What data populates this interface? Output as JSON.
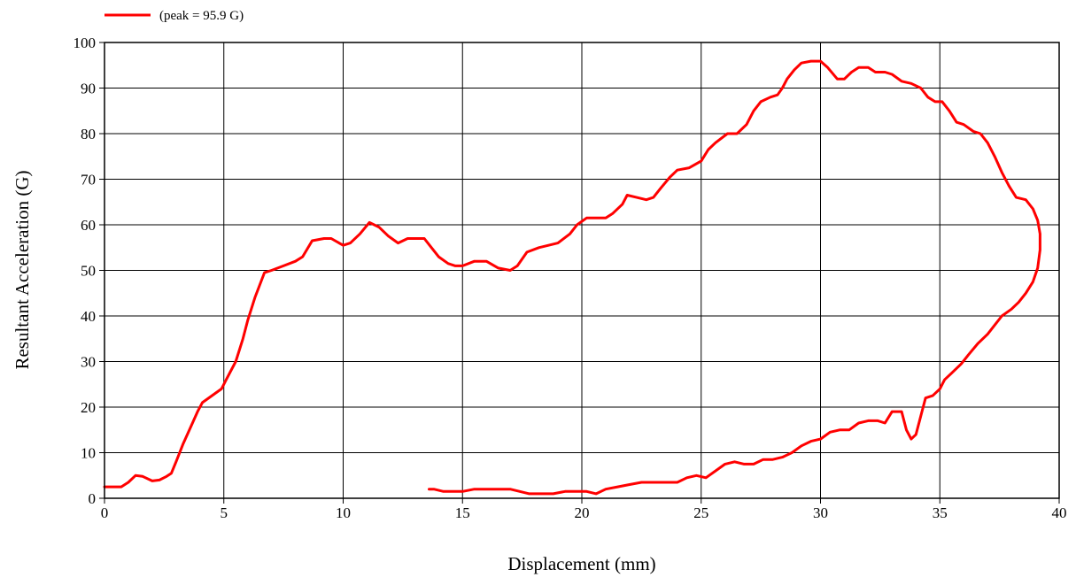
{
  "chart_data": {
    "type": "line",
    "xlabel": "Displacement (mm)",
    "ylabel": "Resultant Acceleration (G)",
    "xlim": [
      0,
      40
    ],
    "ylim": [
      0,
      100
    ],
    "xticks": [
      0,
      5,
      10,
      15,
      20,
      25,
      30,
      35,
      40
    ],
    "yticks": [
      0,
      10,
      20,
      30,
      40,
      50,
      60,
      70,
      80,
      90,
      100
    ],
    "grid": true,
    "legend_position": "top-left",
    "series": [
      {
        "name": "(peak = 95.9 G)",
        "color": "#ff0000",
        "points": [
          [
            0.0,
            2.5
          ],
          [
            0.7,
            2.5
          ],
          [
            1.0,
            3.5
          ],
          [
            1.3,
            5.0
          ],
          [
            1.6,
            4.8
          ],
          [
            2.0,
            3.8
          ],
          [
            2.3,
            4.0
          ],
          [
            2.6,
            4.8
          ],
          [
            2.8,
            5.5
          ],
          [
            3.0,
            8.0
          ],
          [
            3.3,
            12.0
          ],
          [
            3.6,
            15.5
          ],
          [
            3.9,
            19.0
          ],
          [
            4.1,
            21.0
          ],
          [
            4.5,
            22.5
          ],
          [
            4.9,
            24.0
          ],
          [
            5.1,
            26.0
          ],
          [
            5.5,
            30.0
          ],
          [
            5.8,
            35.0
          ],
          [
            6.0,
            39.0
          ],
          [
            6.3,
            44.0
          ],
          [
            6.7,
            49.5
          ],
          [
            7.0,
            50.0
          ],
          [
            7.5,
            51.0
          ],
          [
            8.0,
            52.0
          ],
          [
            8.3,
            53.0
          ],
          [
            8.7,
            56.5
          ],
          [
            9.2,
            57.0
          ],
          [
            9.5,
            57.0
          ],
          [
            10.0,
            55.5
          ],
          [
            10.3,
            56.0
          ],
          [
            10.7,
            58.0
          ],
          [
            11.1,
            60.5
          ],
          [
            11.5,
            59.5
          ],
          [
            11.9,
            57.5
          ],
          [
            12.3,
            56.0
          ],
          [
            12.7,
            57.0
          ],
          [
            13.0,
            57.0
          ],
          [
            13.4,
            57.0
          ],
          [
            13.7,
            55.0
          ],
          [
            14.0,
            53.0
          ],
          [
            14.4,
            51.5
          ],
          [
            14.7,
            51.0
          ],
          [
            15.0,
            51.0
          ],
          [
            15.5,
            52.0
          ],
          [
            16.0,
            52.0
          ],
          [
            16.5,
            50.5
          ],
          [
            17.0,
            50.0
          ],
          [
            17.3,
            51.0
          ],
          [
            17.7,
            54.0
          ],
          [
            18.2,
            55.0
          ],
          [
            18.6,
            55.5
          ],
          [
            19.0,
            56.0
          ],
          [
            19.5,
            58.0
          ],
          [
            19.8,
            60.0
          ],
          [
            20.2,
            61.5
          ],
          [
            20.6,
            61.5
          ],
          [
            21.0,
            61.5
          ],
          [
            21.3,
            62.5
          ],
          [
            21.7,
            64.5
          ],
          [
            21.9,
            66.5
          ],
          [
            22.3,
            66.0
          ],
          [
            22.7,
            65.5
          ],
          [
            23.0,
            66.0
          ],
          [
            23.3,
            68.0
          ],
          [
            23.7,
            70.5
          ],
          [
            24.0,
            72.0
          ],
          [
            24.5,
            72.5
          ],
          [
            25.0,
            74.0
          ],
          [
            25.3,
            76.5
          ],
          [
            25.6,
            78.0
          ],
          [
            26.1,
            80.0
          ],
          [
            26.5,
            80.0
          ],
          [
            26.9,
            82.0
          ],
          [
            27.2,
            85.0
          ],
          [
            27.5,
            87.0
          ],
          [
            27.9,
            88.0
          ],
          [
            28.2,
            88.5
          ],
          [
            28.4,
            90.0
          ],
          [
            28.6,
            92.0
          ],
          [
            28.9,
            94.0
          ],
          [
            29.2,
            95.5
          ],
          [
            29.6,
            95.9
          ],
          [
            30.0,
            95.9
          ],
          [
            30.3,
            94.5
          ],
          [
            30.7,
            92.0
          ],
          [
            31.0,
            92.0
          ],
          [
            31.3,
            93.5
          ],
          [
            31.6,
            94.5
          ],
          [
            32.0,
            94.5
          ],
          [
            32.3,
            93.5
          ],
          [
            32.7,
            93.5
          ],
          [
            33.0,
            93.0
          ],
          [
            33.4,
            91.5
          ],
          [
            33.8,
            91.0
          ],
          [
            34.2,
            90.0
          ],
          [
            34.5,
            88.0
          ],
          [
            34.8,
            87.0
          ],
          [
            35.1,
            87.0
          ],
          [
            35.4,
            85.0
          ],
          [
            35.7,
            82.5
          ],
          [
            36.0,
            82.0
          ],
          [
            36.4,
            80.5
          ],
          [
            36.7,
            80.0
          ],
          [
            37.0,
            78.0
          ],
          [
            37.3,
            75.0
          ],
          [
            37.6,
            71.5
          ],
          [
            37.9,
            68.5
          ],
          [
            38.2,
            66.0
          ],
          [
            38.6,
            65.5
          ],
          [
            38.9,
            63.5
          ],
          [
            39.1,
            61.0
          ],
          [
            39.2,
            58.0
          ],
          [
            39.2,
            54.5
          ],
          [
            39.1,
            50.5
          ],
          [
            38.9,
            47.5
          ],
          [
            38.6,
            45.0
          ],
          [
            38.3,
            43.0
          ],
          [
            38.0,
            41.5
          ],
          [
            37.6,
            40.0
          ],
          [
            37.3,
            38.0
          ],
          [
            37.0,
            36.0
          ],
          [
            36.6,
            34.0
          ],
          [
            36.2,
            31.5
          ],
          [
            35.9,
            29.5
          ],
          [
            35.5,
            27.5
          ],
          [
            35.2,
            26.0
          ],
          [
            35.0,
            24.0
          ],
          [
            34.7,
            22.5
          ],
          [
            34.4,
            22.0
          ],
          [
            34.2,
            18.0
          ],
          [
            34.0,
            14.0
          ],
          [
            33.8,
            13.0
          ],
          [
            33.6,
            15.0
          ],
          [
            33.4,
            19.0
          ],
          [
            33.0,
            19.0
          ],
          [
            32.7,
            16.5
          ],
          [
            32.4,
            17.0
          ],
          [
            32.0,
            17.0
          ],
          [
            31.6,
            16.5
          ],
          [
            31.2,
            15.0
          ],
          [
            30.8,
            15.0
          ],
          [
            30.4,
            14.5
          ],
          [
            30.0,
            13.0
          ],
          [
            29.6,
            12.5
          ],
          [
            29.2,
            11.5
          ],
          [
            28.8,
            10.0
          ],
          [
            28.4,
            9.0
          ],
          [
            28.0,
            8.5
          ],
          [
            27.6,
            8.5
          ],
          [
            27.2,
            7.5
          ],
          [
            26.8,
            7.5
          ],
          [
            26.4,
            8.0
          ],
          [
            26.0,
            7.5
          ],
          [
            25.6,
            6.0
          ],
          [
            25.2,
            4.5
          ],
          [
            24.8,
            5.0
          ],
          [
            24.4,
            4.5
          ],
          [
            24.0,
            3.5
          ],
          [
            23.5,
            3.5
          ],
          [
            23.0,
            3.5
          ],
          [
            22.5,
            3.5
          ],
          [
            22.0,
            3.0
          ],
          [
            21.5,
            2.5
          ],
          [
            21.0,
            2.0
          ],
          [
            20.6,
            1.0
          ],
          [
            20.2,
            1.5
          ],
          [
            19.8,
            1.5
          ],
          [
            19.3,
            1.5
          ],
          [
            18.8,
            1.0
          ],
          [
            18.3,
            1.0
          ],
          [
            17.8,
            1.0
          ],
          [
            17.4,
            1.5
          ],
          [
            17.0,
            2.0
          ],
          [
            16.5,
            2.0
          ],
          [
            16.0,
            2.0
          ],
          [
            15.5,
            2.0
          ],
          [
            15.0,
            1.5
          ],
          [
            14.6,
            1.5
          ],
          [
            14.2,
            1.5
          ],
          [
            13.8,
            2.0
          ],
          [
            13.6,
            2.0
          ]
        ]
      }
    ]
  }
}
